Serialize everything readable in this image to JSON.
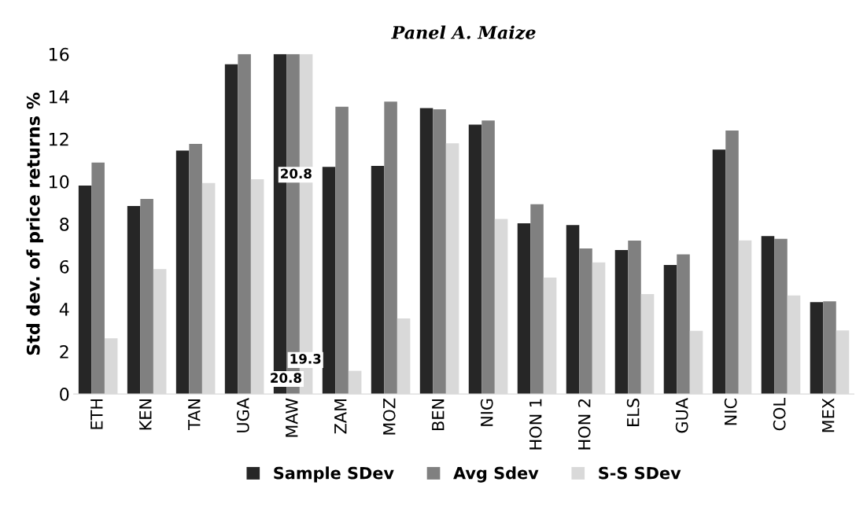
{
  "chart_data": {
    "type": "bar",
    "title": "Panel A. Maize",
    "ylabel": "Std dev. of price returns %",
    "categories": [
      "ETH",
      "KEN",
      "TAN",
      "UGA",
      "MAW",
      "ZAM",
      "MOZ",
      "BEN",
      "NIG",
      "HON 1",
      "HON 2",
      "ELS",
      "GUA",
      "NIC",
      "COL",
      "MEX"
    ],
    "series": [
      {
        "name": "Sample SDev",
        "color": "#262626",
        "values": [
          9.81,
          8.85,
          11.46,
          15.52,
          16,
          10.69,
          10.74,
          13.46,
          12.68,
          8.03,
          7.95,
          6.78,
          6.07,
          11.5,
          7.43,
          4.32
        ]
      },
      {
        "name": "Avg Sdev",
        "color": "#808080",
        "values": [
          10.89,
          9.18,
          11.77,
          16,
          16,
          13.52,
          13.76,
          13.4,
          12.87,
          8.93,
          6.85,
          7.22,
          6.57,
          12.4,
          7.3,
          4.36
        ]
      },
      {
        "name": "S-S SDev",
        "color": "#d9d9d9",
        "values": [
          2.62,
          5.88,
          9.93,
          10.11,
          16,
          1.09,
          3.56,
          11.8,
          8.24,
          5.48,
          6.19,
          4.7,
          2.97,
          7.23,
          4.64,
          2.99
        ]
      }
    ],
    "annotations": [
      "20.8",
      "19.3",
      "20.8"
    ],
    "ylim": [
      0,
      16
    ],
    "yticks": [
      0,
      2,
      4,
      6,
      8,
      10,
      12,
      14,
      16
    ],
    "grid": false,
    "legend": "bottom"
  }
}
